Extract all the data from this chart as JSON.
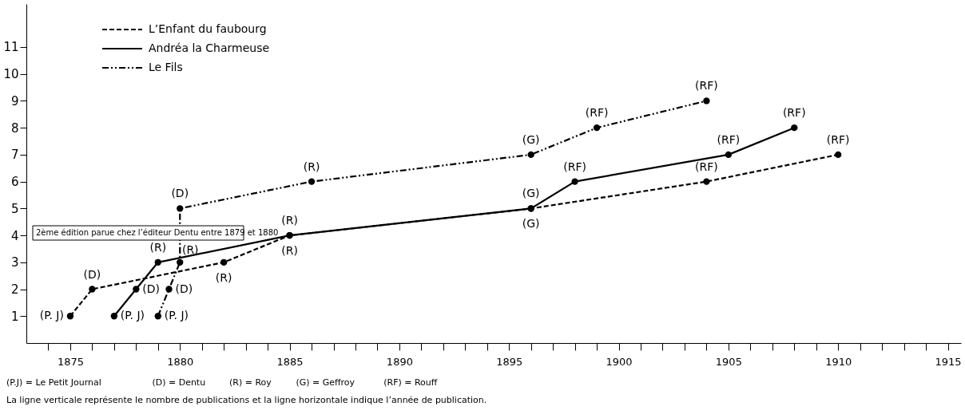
{
  "chart_data": {
    "type": "line",
    "xlim": [
      1873,
      1915.6
    ],
    "ylim": [
      0,
      12.6
    ],
    "xticks": [
      {
        "value": 1874,
        "label": null
      },
      1875,
      {
        "value": 1876,
        "label": null
      },
      {
        "value": 1877,
        "label": null
      },
      {
        "value": 1878,
        "label": null
      },
      {
        "value": 1879,
        "label": null
      },
      1880,
      {
        "value": 1881,
        "label": null
      },
      {
        "value": 1882,
        "label": null
      },
      {
        "value": 1883,
        "label": null
      },
      {
        "value": 1884,
        "label": null
      },
      1885,
      {
        "value": 1886,
        "label": null
      },
      {
        "value": 1887,
        "label": null
      },
      {
        "value": 1888,
        "label": null
      },
      {
        "value": 1889,
        "label": null
      },
      1890,
      {
        "value": 1891,
        "label": null
      },
      {
        "value": 1892,
        "label": null
      },
      {
        "value": 1893,
        "label": null
      },
      {
        "value": 1894,
        "label": null
      },
      1895,
      {
        "value": 1896,
        "label": null
      },
      {
        "value": 1897,
        "label": null
      },
      {
        "value": 1898,
        "label": null
      },
      {
        "value": 1899,
        "label": null
      },
      1900,
      {
        "value": 1901,
        "label": null
      },
      {
        "value": 1902,
        "label": null
      },
      {
        "value": 1903,
        "label": null
      },
      {
        "value": 1904,
        "label": null
      },
      1905,
      {
        "value": 1906,
        "label": null
      },
      {
        "value": 1907,
        "label": null
      },
      {
        "value": 1908,
        "label": null
      },
      {
        "value": 1909,
        "label": null
      },
      1910,
      {
        "value": 1911,
        "label": null
      },
      {
        "value": 1912,
        "label": null
      },
      {
        "value": 1913,
        "label": null
      },
      {
        "value": 1914,
        "label": null
      },
      1915
    ],
    "yticks": [
      1,
      2,
      3,
      4,
      5,
      6,
      7,
      8,
      9,
      10,
      11
    ],
    "grid": false,
    "legend": "top left",
    "marker": "circle",
    "series": [
      {
        "name": "L’Enfant du faubourg",
        "color": "#000000",
        "line_style": "dashed",
        "x": [
          1875,
          1876,
          1882,
          1885,
          1896,
          1904,
          1910
        ],
        "values": [
          1,
          2,
          3,
          4,
          5,
          6,
          7
        ],
        "value_labels": [
          "(P. J)",
          "(D)",
          "(R)",
          "(R)",
          "(G)",
          "(RF)",
          "(RF)"
        ]
      },
      {
        "name": "Andréa la Charmeuse",
        "color": "#000000",
        "line_style": "solid",
        "x": [
          1877,
          1878,
          1879,
          1885,
          1896,
          1898,
          1905,
          1908
        ],
        "values": [
          1,
          2,
          3,
          4,
          5,
          6,
          7,
          8
        ],
        "value_labels": [
          "(P. J)",
          "(D)",
          "(R)",
          "(R)",
          "(G)",
          "(RF)",
          "(RF)",
          "(RF)"
        ]
      },
      {
        "name": "Le Fils",
        "color": "#000000",
        "line_style": "dashdot",
        "x": [
          1879,
          1879.5,
          1880,
          1880,
          1886,
          1896,
          1899,
          1904
        ],
        "values": [
          1,
          2,
          3,
          5,
          6,
          7,
          8,
          9
        ],
        "value_labels": [
          "(P. J)",
          "(D)",
          "(R)",
          "(D)",
          "(R)",
          "(G)",
          "(RF)",
          "(RF)"
        ]
      }
    ],
    "annotations": [
      "2ème édition parue chez l’éditeur Dentu entre 1879 et 1880",
      "(P.J) = Le Petit Journal     (D) = Dentu     (R) = Roy     (G) = Geffroy     (RF) = Rouff",
      "La ligne verticale représente le nombre de publications et la ligne horizontale indique l’année de publication."
    ]
  }
}
